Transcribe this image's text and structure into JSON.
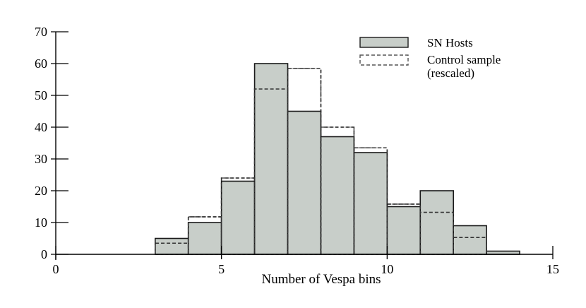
{
  "chart_data": {
    "type": "bar",
    "xlabel": "Number of Vespa bins",
    "ylabel": "",
    "xlim": [
      0,
      15
    ],
    "ylim": [
      0,
      70
    ],
    "xticks": [
      "0",
      "5",
      "10",
      "15"
    ],
    "yticks": [
      "0",
      "10",
      "20",
      "30",
      "40",
      "50",
      "60",
      "70"
    ],
    "bin_width": 1,
    "legend_position": "top-right",
    "colors": {
      "hist_fill": "#c8cec9",
      "hist_edge": "#1a1a1a",
      "control_line": "#555555"
    },
    "series": [
      {
        "name": "SN Hosts",
        "style": "filled",
        "bin_starts": [
          3,
          4,
          5,
          6,
          7,
          8,
          9,
          10,
          11,
          12,
          13
        ],
        "values": [
          5,
          10,
          23,
          60,
          45,
          37,
          32,
          15,
          20,
          9,
          1
        ]
      },
      {
        "name": "Control sample (rescaled)",
        "name_lines": [
          "Control sample",
          "(rescaled)"
        ],
        "style": "dashed-step",
        "bin_starts": [
          3,
          4,
          5,
          6,
          7,
          8,
          9,
          10,
          11,
          12,
          13
        ],
        "values": [
          3.5,
          11.8,
          24,
          52,
          58.5,
          40,
          33.5,
          15.8,
          13.2,
          5.3,
          0
        ]
      }
    ]
  }
}
